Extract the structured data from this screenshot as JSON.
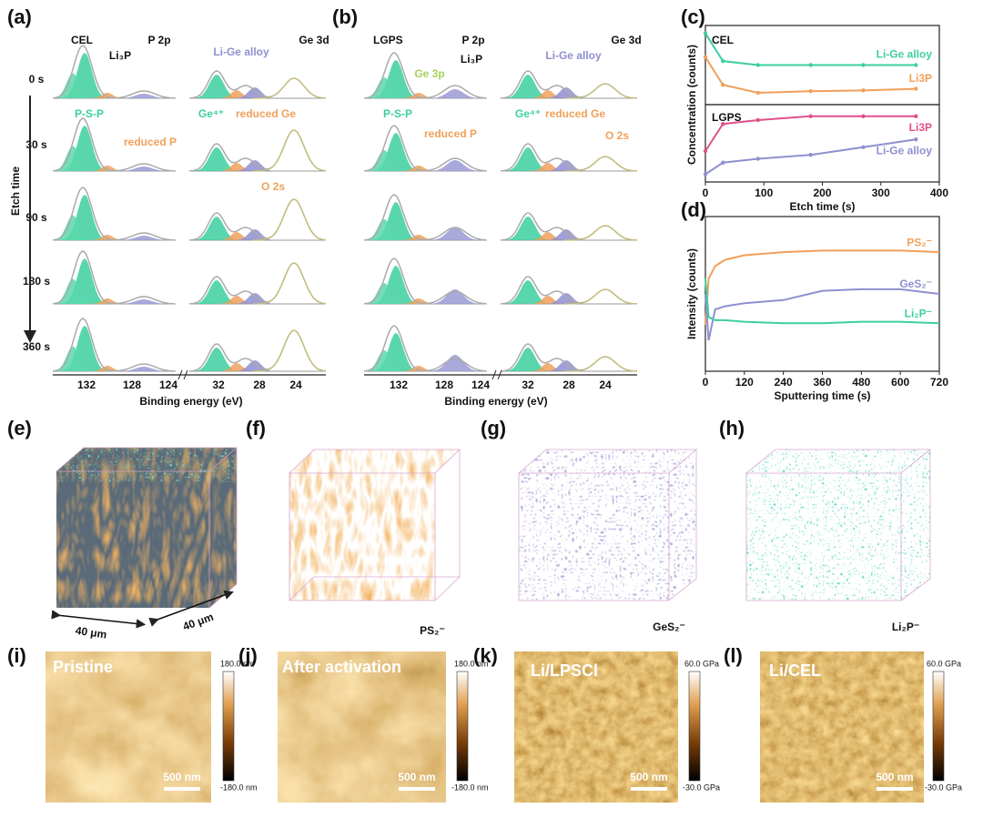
{
  "panels": {
    "a": {
      "label": "(a)",
      "sample": "CEL",
      "region1": "P 2p",
      "region2": "Ge 3d",
      "etch_times": [
        "0 s",
        "30 s",
        "90 s",
        "180 s",
        "360 s"
      ],
      "etch_axis": "Etch time",
      "annotations": [
        "Li₃P",
        "Li-Ge alloy",
        "P-S-P",
        "reduced P",
        "Ge⁴⁺",
        "reduced Ge",
        "O 2s"
      ],
      "xticks": [
        "132",
        "128",
        "124",
        "32",
        "28",
        "24"
      ],
      "xlabel": "Binding energy (eV)"
    },
    "b": {
      "label": "(b)",
      "sample": "LGPS",
      "region1": "P 2p",
      "region2": "Ge 3d",
      "annotations": [
        "Ge 3p",
        "Li₃P",
        "Li-Ge alloy",
        "P-S-P",
        "reduced P",
        "Ge⁴⁺",
        "reduced Ge",
        "O 2s"
      ],
      "xticks": [
        "132",
        "128",
        "124",
        "32",
        "28",
        "24"
      ],
      "xlabel": "Binding energy (eV)"
    },
    "e": {
      "label": "(e)",
      "dims": [
        "40 μm",
        "40 μm"
      ]
    },
    "f": {
      "label": "(f)",
      "species": "PS₂⁻"
    },
    "g": {
      "label": "(g)",
      "species": "GeS₂⁻"
    },
    "h": {
      "label": "(h)",
      "species": "Li₂P⁻"
    },
    "i": {
      "label": "(i)",
      "title": "Pristine",
      "scale": "500 nm",
      "cbar": [
        "180.0 nm",
        "-180.0 nm"
      ]
    },
    "j": {
      "label": "(j)",
      "title": "After activation",
      "scale": "500 nm",
      "cbar": [
        "180.0 nm",
        "-180.0 nm"
      ]
    },
    "k": {
      "label": "(k)",
      "title": "Li/LPSCl",
      "scale": "500 nm",
      "cbar": [
        "60.0 GPa",
        "-30.0 GPa"
      ]
    },
    "l": {
      "label": "(l)",
      "title": "Li/CEL",
      "scale": "500 nm",
      "cbar": [
        "60.0 GPa",
        "-30.0 GPa"
      ]
    }
  },
  "chart_data": [
    {
      "type": "line",
      "panel_label": "(c)",
      "title": "CEL",
      "x": [
        0,
        30,
        90,
        180,
        270,
        360
      ],
      "series": [
        {
          "name": "Li-Ge alloy",
          "color": "#3ccf9f",
          "values": [
            0.9,
            0.55,
            0.5,
            0.5,
            0.5,
            0.5
          ]
        },
        {
          "name": "Li3P",
          "color": "#f0a05a",
          "values": [
            0.6,
            0.25,
            0.15,
            0.17,
            0.18,
            0.2
          ]
        }
      ],
      "xlim": [
        0,
        400
      ],
      "ylim": [
        0,
        1
      ]
    },
    {
      "type": "line",
      "title": "LGPS",
      "xlabel": "Etch time (s)",
      "ylabel": "Concentration (counts)",
      "x": [
        0,
        30,
        90,
        180,
        270,
        360
      ],
      "series": [
        {
          "name": "Li3P",
          "color": "#e0508a",
          "values": [
            0.4,
            0.75,
            0.8,
            0.85,
            0.85,
            0.85
          ]
        },
        {
          "name": "Li-Ge alloy",
          "color": "#8f8fd0",
          "values": [
            0.1,
            0.25,
            0.3,
            0.35,
            0.45,
            0.55
          ]
        }
      ],
      "xlim": [
        0,
        400
      ],
      "ylim": [
        0,
        1
      ],
      "xticks": [
        0,
        100,
        200,
        300,
        400
      ]
    },
    {
      "type": "line",
      "panel_label": "(d)",
      "xlabel": "Sputtering time (s)",
      "ylabel": "Intensity (counts)",
      "x": [
        0,
        10,
        30,
        60,
        120,
        240,
        360,
        480,
        600,
        720
      ],
      "series": [
        {
          "name": "PS₂⁻",
          "color": "#f0a05a",
          "values": [
            0.3,
            0.6,
            0.68,
            0.72,
            0.75,
            0.77,
            0.78,
            0.78,
            0.78,
            0.77
          ]
        },
        {
          "name": "GeS₂⁻",
          "color": "#8f8fd0",
          "values": [
            0.5,
            0.2,
            0.4,
            0.42,
            0.44,
            0.46,
            0.52,
            0.53,
            0.53,
            0.5
          ]
        },
        {
          "name": "Li₂P⁻",
          "color": "#3ccf9f",
          "values": [
            0.6,
            0.35,
            0.33,
            0.33,
            0.32,
            0.31,
            0.31,
            0.32,
            0.32,
            0.31
          ]
        }
      ],
      "xlim": [
        0,
        720
      ],
      "ylim": [
        0,
        1
      ],
      "xticks": [
        0,
        120,
        240,
        360,
        480,
        600,
        720
      ]
    }
  ]
}
